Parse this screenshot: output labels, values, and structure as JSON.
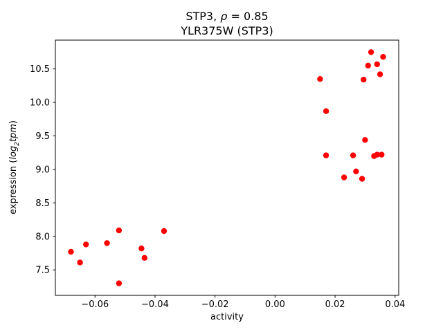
{
  "figure": {
    "title_line1": {
      "prefix": "STP3, ",
      "rho": "ρ",
      "rest": " = 0.85"
    },
    "title_line2": "YLR375W (STP3)",
    "xlabel": "activity",
    "ylabel": {
      "prefix": "expression (",
      "log": "log",
      "sub": "2",
      "tpm": "tpm",
      "suffix": ")"
    }
  },
  "chart_data": {
    "type": "scatter",
    "title": "STP3, ρ = 0.85",
    "subtitle": "YLR375W (STP3)",
    "xlabel": "activity",
    "ylabel": "expression (log2 tpm)",
    "legend": "none",
    "grid": false,
    "marker_color": "#ff0000",
    "marker_radius": 4.2,
    "xlim": [
      -0.0732,
      0.0412
    ],
    "ylim": [
      7.12,
      10.93
    ],
    "xticks": {
      "values": [
        -0.06,
        -0.04,
        -0.02,
        0.0,
        0.02,
        0.04
      ],
      "labels": [
        "−0.06",
        "−0.04",
        "−0.02",
        "0.00",
        "0.02",
        "0.04"
      ]
    },
    "yticks": {
      "values": [
        7.5,
        8.0,
        8.5,
        9.0,
        9.5,
        10.0,
        10.5
      ],
      "labels": [
        "7.5",
        "8.0",
        "8.5",
        "9.0",
        "9.5",
        "10.0",
        "10.5"
      ]
    },
    "points": [
      [
        -0.068,
        7.77
      ],
      [
        -0.065,
        7.61
      ],
      [
        -0.063,
        7.88
      ],
      [
        -0.056,
        7.9
      ],
      [
        -0.052,
        8.09
      ],
      [
        -0.052,
        7.3
      ],
      [
        -0.0445,
        7.82
      ],
      [
        -0.0435,
        7.68
      ],
      [
        -0.037,
        8.08
      ],
      [
        0.015,
        10.35
      ],
      [
        0.017,
        9.87
      ],
      [
        0.017,
        9.21
      ],
      [
        0.023,
        8.88
      ],
      [
        0.026,
        9.21
      ],
      [
        0.027,
        8.97
      ],
      [
        0.029,
        8.86
      ],
      [
        0.0295,
        10.34
      ],
      [
        0.03,
        9.44
      ],
      [
        0.031,
        10.55
      ],
      [
        0.032,
        10.75
      ],
      [
        0.033,
        9.2
      ],
      [
        0.034,
        9.22
      ],
      [
        0.034,
        10.57
      ],
      [
        0.0355,
        9.22
      ],
      [
        0.035,
        10.42
      ],
      [
        0.036,
        10.68
      ]
    ]
  }
}
